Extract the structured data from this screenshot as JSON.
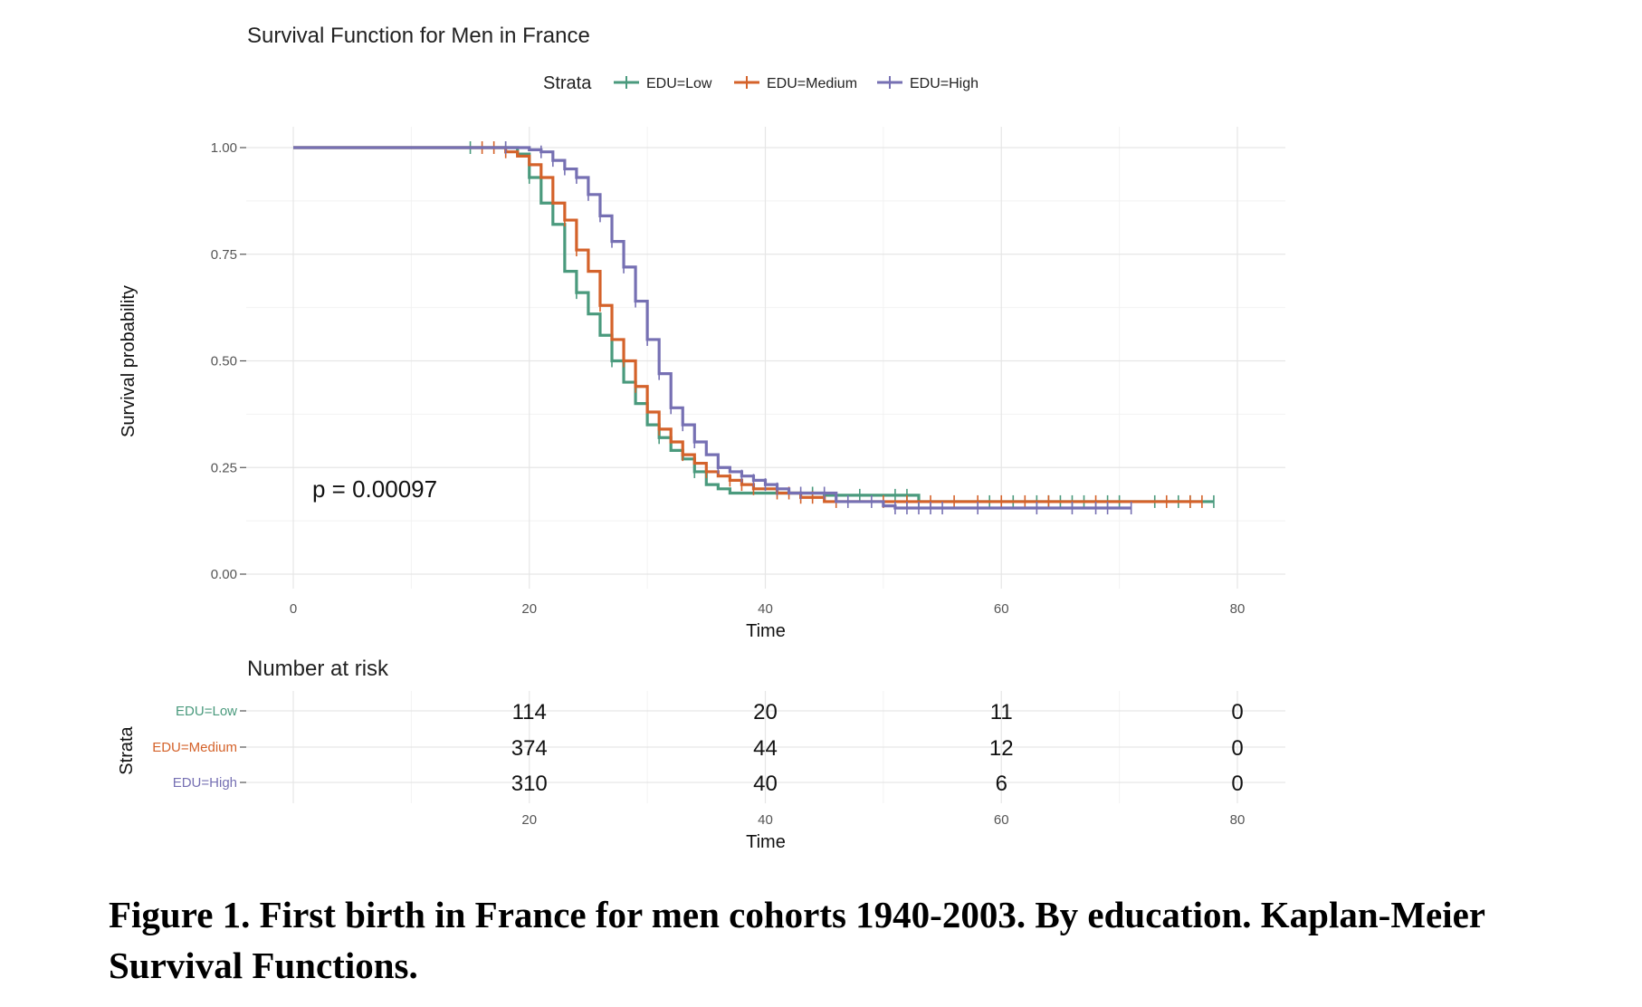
{
  "chart_data": [
    {
      "type": "line",
      "subtype": "kaplan-meier step",
      "title": "Survival Function for Men in France",
      "xlabel": "Time",
      "ylabel": "Survival probability",
      "xlim": [
        0,
        80
      ],
      "ylim": [
        0,
        1
      ],
      "x_ticks": [
        0,
        20,
        40,
        60,
        80
      ],
      "y_ticks": [
        0.0,
        0.25,
        0.5,
        0.75,
        1.0
      ],
      "y_tick_labels": [
        "0.00",
        "0.25",
        "0.50",
        "0.75",
        "1.00"
      ],
      "grid": true,
      "legend": {
        "title": "Strata",
        "placement": "top",
        "entries": [
          "EDU=Low",
          "EDU=Medium",
          "EDU=High"
        ]
      },
      "annotation": "p = 0.00097",
      "series": [
        {
          "name": "EDU=Low",
          "color": "#4a9a7d",
          "steps": [
            [
              0,
              1.0
            ],
            [
              19,
              0.985
            ],
            [
              20,
              0.93
            ],
            [
              21,
              0.87
            ],
            [
              22,
              0.82
            ],
            [
              23,
              0.71
            ],
            [
              24,
              0.66
            ],
            [
              25,
              0.61
            ],
            [
              26,
              0.56
            ],
            [
              27,
              0.5
            ],
            [
              28,
              0.45
            ],
            [
              29,
              0.4
            ],
            [
              30,
              0.35
            ],
            [
              31,
              0.32
            ],
            [
              32,
              0.29
            ],
            [
              33,
              0.27
            ],
            [
              34,
              0.24
            ],
            [
              35,
              0.21
            ],
            [
              36,
              0.2
            ],
            [
              37,
              0.19
            ],
            [
              45,
              0.185
            ],
            [
              53,
              0.17
            ],
            [
              78,
              0.17
            ]
          ],
          "censor": [
            15,
            18,
            20,
            24,
            27,
            31,
            34,
            44,
            48,
            51,
            52,
            53,
            59,
            61,
            63,
            64,
            65,
            66,
            67,
            69,
            70,
            73,
            75,
            76,
            78
          ]
        },
        {
          "name": "EDU=Medium",
          "color": "#d4622a",
          "steps": [
            [
              0,
              1.0
            ],
            [
              18,
              0.99
            ],
            [
              19,
              0.98
            ],
            [
              20,
              0.96
            ],
            [
              21,
              0.93
            ],
            [
              22,
              0.87
            ],
            [
              23,
              0.83
            ],
            [
              24,
              0.76
            ],
            [
              25,
              0.71
            ],
            [
              26,
              0.63
            ],
            [
              27,
              0.55
            ],
            [
              28,
              0.5
            ],
            [
              29,
              0.44
            ],
            [
              30,
              0.38
            ],
            [
              31,
              0.34
            ],
            [
              32,
              0.31
            ],
            [
              33,
              0.28
            ],
            [
              34,
              0.26
            ],
            [
              35,
              0.24
            ],
            [
              36,
              0.23
            ],
            [
              37,
              0.22
            ],
            [
              38,
              0.21
            ],
            [
              39,
              0.2
            ],
            [
              41,
              0.19
            ],
            [
              43,
              0.18
            ],
            [
              45,
              0.17
            ],
            [
              77,
              0.17
            ]
          ],
          "censor": [
            16,
            17,
            18,
            23,
            24,
            26,
            28,
            29,
            31,
            33,
            35,
            37,
            38,
            39,
            41,
            42,
            43,
            44,
            46,
            50,
            52,
            54,
            56,
            58,
            60,
            62,
            64,
            68,
            74,
            76,
            77
          ]
        },
        {
          "name": "EDU=High",
          "color": "#7670b3",
          "steps": [
            [
              0,
              1.0
            ],
            [
              20,
              0.995
            ],
            [
              21,
              0.99
            ],
            [
              22,
              0.97
            ],
            [
              23,
              0.95
            ],
            [
              24,
              0.93
            ],
            [
              25,
              0.89
            ],
            [
              26,
              0.84
            ],
            [
              27,
              0.78
            ],
            [
              28,
              0.72
            ],
            [
              29,
              0.64
            ],
            [
              30,
              0.55
            ],
            [
              31,
              0.47
            ],
            [
              32,
              0.39
            ],
            [
              33,
              0.35
            ],
            [
              34,
              0.31
            ],
            [
              35,
              0.28
            ],
            [
              36,
              0.25
            ],
            [
              37,
              0.24
            ],
            [
              38,
              0.23
            ],
            [
              39,
              0.22
            ],
            [
              40,
              0.21
            ],
            [
              41,
              0.2
            ],
            [
              42,
              0.19
            ],
            [
              46,
              0.17
            ],
            [
              50,
              0.16
            ],
            [
              51,
              0.155
            ],
            [
              71,
              0.155
            ]
          ],
          "censor": [
            18,
            21,
            22,
            23,
            24,
            25,
            26,
            27,
            28,
            29,
            30,
            31,
            32,
            33,
            34,
            36,
            38,
            39,
            40,
            41,
            43,
            45,
            47,
            49,
            51,
            52,
            53,
            54,
            55,
            58,
            63,
            66,
            68,
            69,
            71
          ]
        }
      ]
    },
    {
      "type": "table",
      "title": "Number at risk",
      "xlabel": "Time",
      "ylabel": "Strata",
      "x_ticks": [
        20,
        40,
        60,
        80
      ],
      "rows": [
        {
          "name": "EDU=Low",
          "color": "#4a9a7d",
          "values": [
            "114",
            "20",
            "11",
            "0"
          ]
        },
        {
          "name": "EDU=Medium",
          "color": "#d4622a",
          "values": [
            "374",
            "44",
            "12",
            "0"
          ]
        },
        {
          "name": "EDU=High",
          "color": "#7670b3",
          "values": [
            "310",
            "40",
            "6",
            "0"
          ]
        }
      ]
    }
  ],
  "caption": "Figure 1. First birth in France for men cohorts 1940-2003. By education. Kaplan-Meier Survival Functions."
}
